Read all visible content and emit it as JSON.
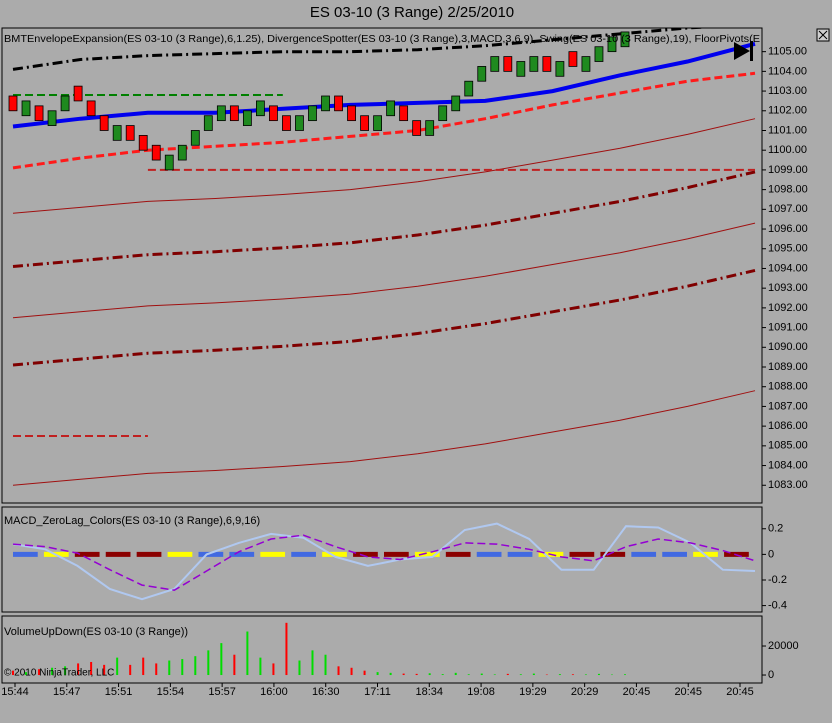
{
  "title": "ES 03-10 (3 Range)  2/25/2010",
  "copyright": "© 2010 NinjaTrader, LLC",
  "x_axis_labels": [
    "15:44",
    "15:47",
    "15:51",
    "15:54",
    "15:57",
    "16:00",
    "16:30",
    "17:11",
    "18:34",
    "19:08",
    "19:29",
    "20:29",
    "20:45",
    "20:45",
    "20:45"
  ],
  "chart_data": [
    {
      "type": "candlestick",
      "label": "BMTEnvelopeExpansion(ES 03-10 (3 Range),6,1.25), DivergenceSpotter(ES 03-10 (3 Range),3,MACD,3,6,9), Swing(ES 03-10 (3 Range),19), FloorPivots(E",
      "up_color": "#1f8a1f",
      "down_color": "#ff0000",
      "open": [
        1102.75,
        1101.75,
        1102.25,
        1101.25,
        1102.0,
        1103.25,
        1102.5,
        1101.75,
        1100.5,
        1101.25,
        1100.75,
        1100.25,
        1099.0,
        1099.5,
        1100.25,
        1101.0,
        1101.5,
        1102.25,
        1101.25,
        1101.75,
        1102.25,
        1101.75,
        1101.0,
        1101.5,
        1102.0,
        1102.75,
        1102.25,
        1101.75,
        1101.0,
        1101.75,
        1102.25,
        1101.5,
        1100.75,
        1101.5,
        1102.0,
        1102.75,
        1103.5,
        1104.0,
        1104.75,
        1103.75,
        1104.0,
        1104.75,
        1103.75,
        1105.0,
        1104.0,
        1104.5,
        1105.0,
        1105.25
      ],
      "close": [
        1102.0,
        1102.5,
        1101.5,
        1102.0,
        1102.75,
        1102.5,
        1101.75,
        1101.0,
        1101.25,
        1100.5,
        1100.0,
        1099.5,
        1099.75,
        1100.25,
        1101.0,
        1101.75,
        1102.25,
        1101.5,
        1102.0,
        1102.5,
        1101.5,
        1101.0,
        1101.75,
        1102.25,
        1102.75,
        1102.0,
        1101.5,
        1101.0,
        1101.75,
        1102.5,
        1101.5,
        1100.75,
        1101.5,
        1102.25,
        1102.75,
        1103.5,
        1104.25,
        1104.75,
        1104.0,
        1104.5,
        1104.75,
        1104.0,
        1104.5,
        1104.25,
        1104.75,
        1105.25,
        1105.75,
        1106.0
      ],
      "series": [
        {
          "color": "#000000",
          "style": "dashdot",
          "width": 3,
          "values": [
            1104.1,
            1104.6,
            1104.8,
            1104.9,
            1105.0,
            1105.0,
            1105.1,
            1105.3,
            1105.6,
            1105.9,
            1106.2,
            1106.4
          ]
        },
        {
          "color": "#0000ee",
          "style": "solid",
          "width": 4,
          "values": [
            1101.2,
            1101.6,
            1101.9,
            1101.9,
            1102.1,
            1102.3,
            1102.4,
            1102.5,
            1103.0,
            1103.8,
            1104.5,
            1105.4
          ]
        },
        {
          "color": "#ff1a1a",
          "style": "dashed",
          "width": 3,
          "values": [
            1099.1,
            1099.6,
            1100.0,
            1100.2,
            1100.4,
            1100.7,
            1101.0,
            1101.6,
            1102.3,
            1102.9,
            1103.5,
            1103.9
          ]
        },
        {
          "color": "#a01010",
          "style": "solid",
          "width": 1,
          "values": [
            1096.8,
            1097.1,
            1097.4,
            1097.55,
            1097.75,
            1098.0,
            1098.4,
            1098.9,
            1099.5,
            1100.1,
            1100.8,
            1101.6
          ]
        },
        {
          "color": "#800000",
          "style": "dashdot",
          "width": 3,
          "values": [
            1094.1,
            1094.4,
            1094.7,
            1094.85,
            1095.05,
            1095.3,
            1095.7,
            1096.2,
            1096.8,
            1097.4,
            1098.1,
            1098.9
          ]
        },
        {
          "color": "#a01010",
          "style": "solid",
          "width": 1,
          "values": [
            1091.5,
            1091.8,
            1092.1,
            1092.25,
            1092.45,
            1092.7,
            1093.1,
            1093.6,
            1094.2,
            1094.8,
            1095.5,
            1096.3
          ]
        },
        {
          "color": "#800000",
          "style": "dashdot",
          "width": 3,
          "values": [
            1089.1,
            1089.4,
            1089.7,
            1089.85,
            1090.05,
            1090.3,
            1090.7,
            1091.2,
            1091.8,
            1092.4,
            1093.1,
            1093.9
          ]
        },
        {
          "color": "#a01010",
          "style": "solid",
          "width": 1,
          "values": [
            1083.0,
            1083.3,
            1083.6,
            1083.75,
            1083.95,
            1084.2,
            1084.6,
            1085.1,
            1085.7,
            1086.3,
            1087.0,
            1087.8
          ]
        },
        {
          "color": "#008000",
          "style": "dashed",
          "width": 2,
          "values": [
            1102.8,
            1102.8,
            1102.8,
            1102.8,
            1102.8,
            null,
            null,
            null,
            null,
            null,
            null,
            null
          ]
        },
        {
          "color": "#c02020",
          "style": "dashed",
          "width": 2,
          "values": [
            null,
            null,
            1099.0,
            1099.0,
            1099.0,
            1099.0,
            1099.0,
            1099.0,
            1099.0,
            1099.0,
            1099.0,
            1099.0
          ]
        },
        {
          "color": "#c02020",
          "style": "dashed",
          "width": 2,
          "values": [
            1085.5,
            1085.5,
            1085.5,
            null,
            null,
            null,
            null,
            null,
            null,
            null,
            null,
            null
          ]
        }
      ],
      "ylim": [
        1082.1,
        1106.2
      ],
      "yticks": [
        {
          "value": 1083,
          "label": "1083.00"
        },
        {
          "value": 1084,
          "label": "1084.00"
        },
        {
          "value": 1085,
          "label": "1085.00"
        },
        {
          "value": 1086,
          "label": "1086.00"
        },
        {
          "value": 1087,
          "label": "1087.00"
        },
        {
          "value": 1088,
          "label": "1088.00"
        },
        {
          "value": 1089,
          "label": "1089.00"
        },
        {
          "value": 1090,
          "label": "1090.00"
        },
        {
          "value": 1091,
          "label": "1091.00"
        },
        {
          "value": 1092,
          "label": "1092.00"
        },
        {
          "value": 1093,
          "label": "1093.00"
        },
        {
          "value": 1094,
          "label": "1094.00"
        },
        {
          "value": 1095,
          "label": "1095.00"
        },
        {
          "value": 1096,
          "label": "1096.00"
        },
        {
          "value": 1097,
          "label": "1097.00"
        },
        {
          "value": 1098,
          "label": "1098.00"
        },
        {
          "value": 1099,
          "label": "1099.00"
        },
        {
          "value": 1100,
          "label": "1100.00"
        },
        {
          "value": 1101,
          "label": "1101.00"
        },
        {
          "value": 1102,
          "label": "1102.00"
        },
        {
          "value": 1103,
          "label": "1103.00"
        },
        {
          "value": 1104,
          "label": "1104.00"
        },
        {
          "value": 1105,
          "label": "1105.00"
        }
      ]
    },
    {
      "type": "line",
      "label": "MACD_ZeroLag_Colors(ES 03-10 (3 Range),6,9,16)",
      "series": [
        {
          "color": "#b0c8f0",
          "style": "solid",
          "width": 2,
          "values": [
            0.08,
            0.04,
            -0.09,
            -0.27,
            -0.35,
            -0.27,
            0.0,
            0.09,
            0.16,
            0.13,
            -0.02,
            -0.09,
            -0.04,
            -0.02,
            0.19,
            0.24,
            0.12,
            -0.12,
            -0.12,
            0.22,
            0.21,
            0.09,
            -0.12,
            -0.13
          ]
        },
        {
          "color": "#9400d3",
          "style": "dashed",
          "width": 1.5,
          "values": [
            0.08,
            0.06,
            0.01,
            -0.12,
            -0.24,
            -0.28,
            -0.13,
            0.02,
            0.12,
            0.15,
            0.06,
            -0.02,
            -0.04,
            0.02,
            0.09,
            0.08,
            0.04,
            -0.02,
            -0.05,
            0.06,
            0.12,
            0.09,
            0.03,
            -0.05
          ]
        }
      ],
      "zero_line_colors": [
        "#4169e1",
        "#ffff00",
        "#8b0000",
        "#8b0000",
        "#8b0000",
        "#ffff00",
        "#4169e1",
        "#4169e1",
        "#ffff00",
        "#4169e1",
        "#ffff00",
        "#8b0000",
        "#8b0000",
        "#ffff00",
        "#8b0000",
        "#4169e1",
        "#4169e1",
        "#ffff00",
        "#8b0000",
        "#8b0000",
        "#4169e1",
        "#4169e1",
        "#ffff00",
        "#8b0000"
      ],
      "ylim": [
        -0.45,
        0.37
      ],
      "yticks": [
        0.2,
        0,
        -0.2,
        -0.4
      ]
    },
    {
      "type": "bar",
      "label": "VolumeUpDown(ES 03-10 (3 Range))",
      "up_color": "#00dd00",
      "down_color": "#ff0000",
      "values": [
        3000,
        2000,
        4000,
        5000,
        6000,
        8000,
        9000,
        7000,
        12000,
        7000,
        12000,
        8000,
        10000,
        11000,
        13000,
        17000,
        22000,
        14000,
        30000,
        12000,
        8000,
        36000,
        10000,
        17000,
        14000,
        6000,
        5000,
        3000,
        2000,
        1500,
        1000,
        800,
        1200,
        600,
        1500,
        500,
        1000,
        400,
        800,
        500,
        1000,
        300,
        600,
        500,
        400,
        800,
        300,
        500
      ],
      "ylim": [
        -5500,
        40700
      ],
      "yticks": [
        20000,
        0
      ]
    }
  ]
}
